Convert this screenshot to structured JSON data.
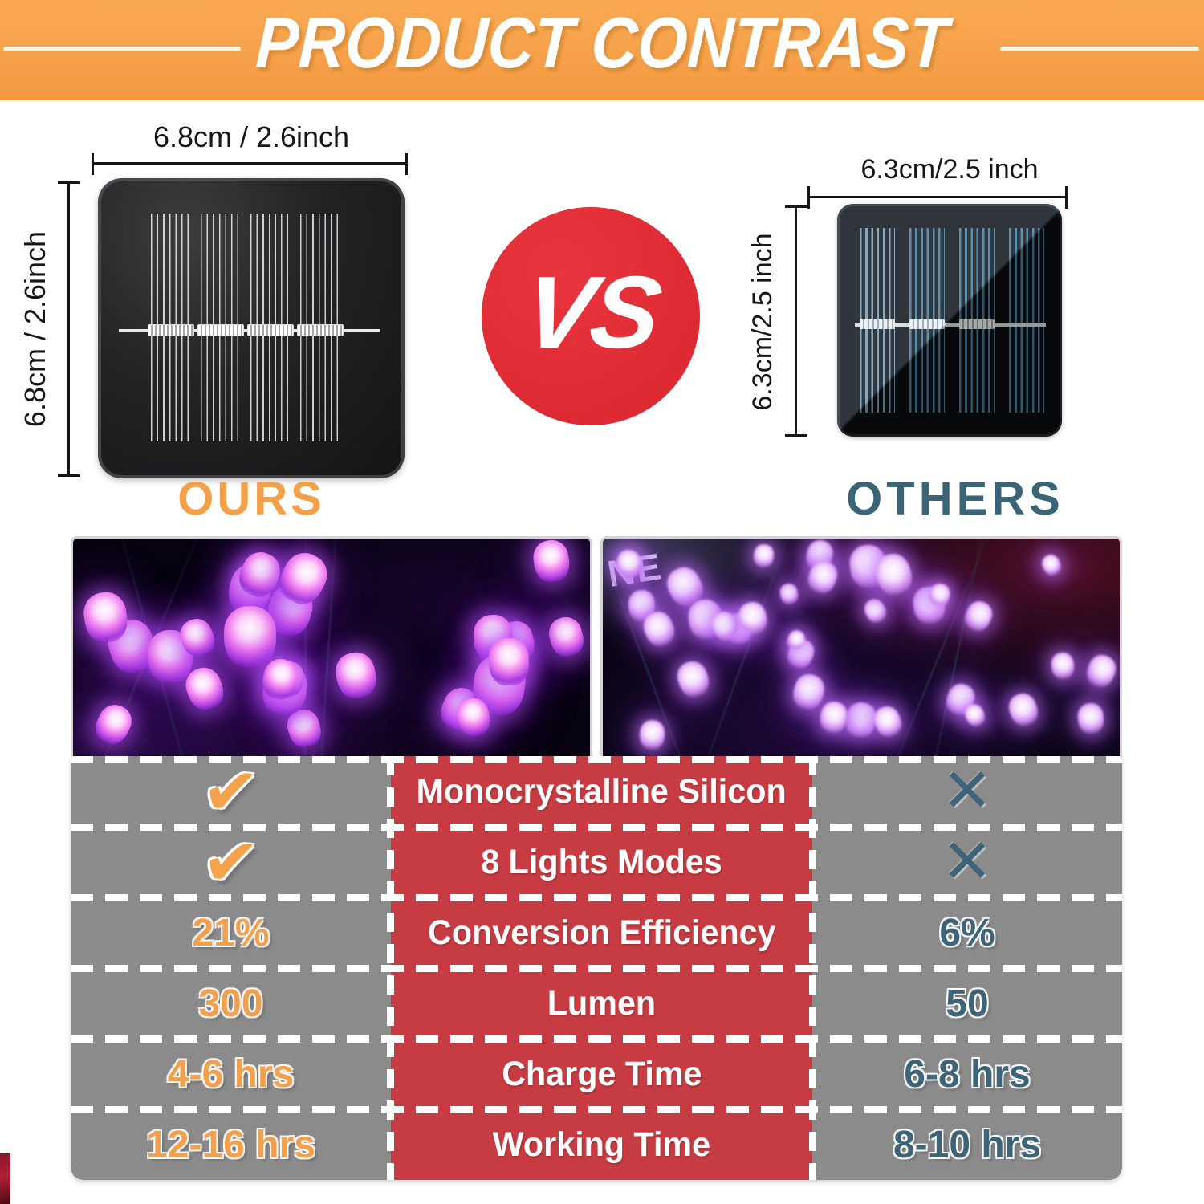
{
  "banner": {
    "title": "PRODUCT CONTRAST",
    "bg_color": "#F7A14B"
  },
  "ours": {
    "label": "OURS",
    "label_color": "#F3A04B",
    "width_dim": "6.8cm / 2.6inch",
    "height_dim": "6.8cm / 2.6inch"
  },
  "vs": {
    "label": "VS",
    "bg_color": "#DE2A32"
  },
  "others": {
    "label": "OTHERS",
    "label_color": "#3A6577",
    "width_dim": "6.3cm/2.5 inch",
    "height_dim": "6.3cm/2.5 inch"
  },
  "photos": {
    "right_overlay_text": "NE"
  },
  "comparison_table": {
    "ours_color": "#F2A04B",
    "others_color": "#3E6477",
    "middle_bg": "#C63C42",
    "side_bg": "#8B8B8B",
    "check_symbol": "✔",
    "cross_symbol": "✕",
    "rows": [
      {
        "ours": "check",
        "feature": "Monocrystalline Silicon",
        "others": "cross"
      },
      {
        "ours": "check",
        "feature": "8 Lights Modes",
        "others": "cross"
      },
      {
        "ours": "21%",
        "feature": "Conversion Efficiency",
        "others": "6%"
      },
      {
        "ours": "300",
        "feature": "Lumen",
        "others": "50"
      },
      {
        "ours": "4-6 hrs",
        "feature": "Charge Time",
        "others": "6-8 hrs"
      },
      {
        "ours": "12-16 hrs",
        "feature": "Working Time",
        "others": "8-10 hrs"
      }
    ]
  }
}
